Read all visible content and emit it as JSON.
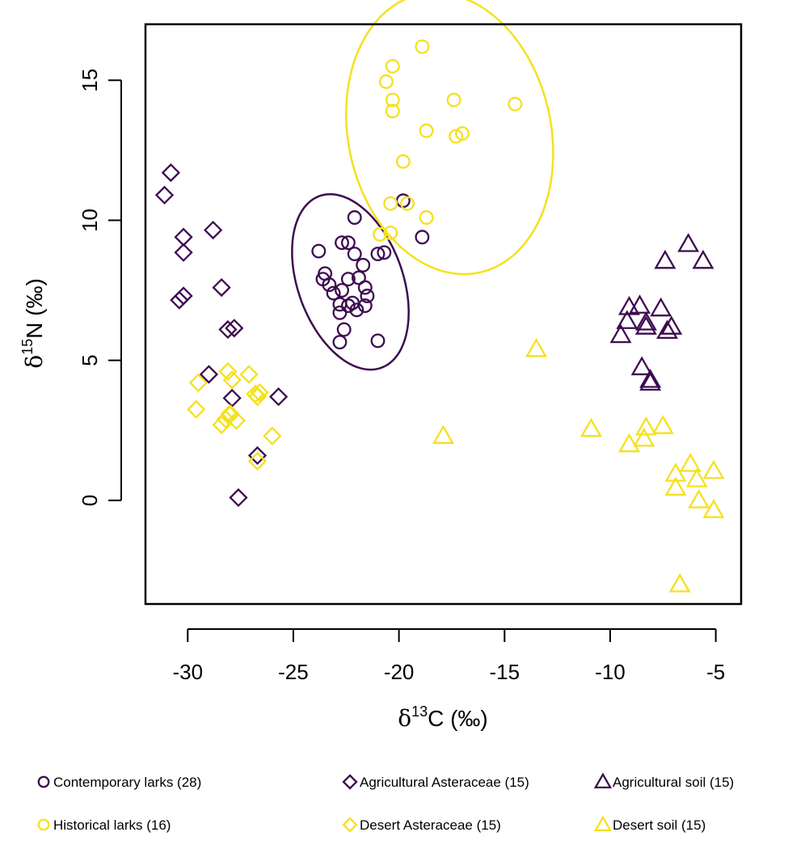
{
  "colors": {
    "purple": "#3d0c4f",
    "yellow": "#f5e11d",
    "axis": "#000000"
  },
  "chart_data": {
    "type": "scatter",
    "title": "",
    "xlabel": {
      "prefix": "δ",
      "sup": "13",
      "main": "C (‰)"
    },
    "ylabel": {
      "prefix": "δ",
      "sup": "15",
      "main": "N (‰)"
    },
    "xlim": [
      -32,
      -3.8
    ],
    "ylim": [
      -3.7,
      17
    ],
    "xticks": [
      -30,
      -25,
      -20,
      -15,
      -10,
      -5
    ],
    "xtick_labels": [
      "-30",
      "-25",
      "-20",
      "-15",
      "-10",
      "-5"
    ],
    "yticks": [
      0,
      5,
      10,
      15
    ],
    "ytick_labels": [
      "0",
      "5",
      "10",
      "15"
    ],
    "grid": false,
    "legend_position": "bottom",
    "series": [
      {
        "name": "Contemporary larks (28)",
        "marker": "circle",
        "color": "#3d0c4f",
        "points": [
          [
            -23.8,
            8.9
          ],
          [
            -22.7,
            9.2
          ],
          [
            -22.4,
            9.2
          ],
          [
            -22.1,
            10.1
          ],
          [
            -19.8,
            10.7
          ],
          [
            -18.9,
            9.4
          ],
          [
            -21.0,
            8.8
          ],
          [
            -20.7,
            8.85
          ],
          [
            -21.7,
            8.4
          ],
          [
            -22.1,
            8.8
          ],
          [
            -23.5,
            8.1
          ],
          [
            -23.6,
            7.9
          ],
          [
            -23.3,
            7.7
          ],
          [
            -23.1,
            7.4
          ],
          [
            -22.4,
            7.9
          ],
          [
            -21.9,
            7.95
          ],
          [
            -21.6,
            7.6
          ],
          [
            -21.5,
            7.3
          ],
          [
            -22.7,
            7.5
          ],
          [
            -22.2,
            7.05
          ],
          [
            -22.4,
            6.95
          ],
          [
            -21.6,
            6.95
          ],
          [
            -22.8,
            6.7
          ],
          [
            -22.8,
            7.0
          ],
          [
            -22.6,
            6.1
          ],
          [
            -22.8,
            5.65
          ],
          [
            -21.0,
            5.7
          ],
          [
            -22.0,
            6.8
          ]
        ]
      },
      {
        "name": "Historical larks (16)",
        "marker": "circle",
        "color": "#f5e11d",
        "points": [
          [
            -18.9,
            16.2
          ],
          [
            -20.3,
            15.5
          ],
          [
            -20.6,
            14.95
          ],
          [
            -20.3,
            14.3
          ],
          [
            -20.3,
            13.9
          ],
          [
            -17.4,
            14.3
          ],
          [
            -14.5,
            14.15
          ],
          [
            -18.7,
            13.2
          ],
          [
            -17.3,
            13.0
          ],
          [
            -17.0,
            13.1
          ],
          [
            -19.8,
            12.1
          ],
          [
            -20.4,
            10.6
          ],
          [
            -19.6,
            10.6
          ],
          [
            -18.7,
            10.1
          ],
          [
            -20.9,
            9.5
          ],
          [
            -20.4,
            9.55
          ]
        ]
      },
      {
        "name": "Agricultural Asteraceae (15)",
        "marker": "diamond",
        "color": "#3d0c4f",
        "points": [
          [
            -30.8,
            11.7
          ],
          [
            -31.1,
            10.9
          ],
          [
            -30.2,
            9.4
          ],
          [
            -30.2,
            8.85
          ],
          [
            -28.8,
            9.65
          ],
          [
            -28.4,
            7.6
          ],
          [
            -30.2,
            7.3
          ],
          [
            -30.4,
            7.15
          ],
          [
            -28.1,
            6.1
          ],
          [
            -27.8,
            6.15
          ],
          [
            -29.0,
            4.5
          ],
          [
            -27.9,
            3.65
          ],
          [
            -25.7,
            3.7
          ],
          [
            -26.7,
            1.6
          ],
          [
            -27.6,
            0.1
          ]
        ]
      },
      {
        "name": "Desert Asteraceae (15)",
        "marker": "diamond",
        "color": "#f5e11d",
        "points": [
          [
            -28.1,
            4.6
          ],
          [
            -29.5,
            4.2
          ],
          [
            -27.9,
            4.3
          ],
          [
            -27.1,
            4.5
          ],
          [
            -26.8,
            3.8
          ],
          [
            -26.6,
            3.85
          ],
          [
            -26.7,
            3.7
          ],
          [
            -29.6,
            3.25
          ],
          [
            -28.0,
            3.05
          ],
          [
            -28.2,
            2.9
          ],
          [
            -27.7,
            2.85
          ],
          [
            -28.4,
            2.7
          ],
          [
            -26.0,
            2.3
          ],
          [
            -26.7,
            1.4
          ],
          [
            -28.0,
            3.1
          ]
        ]
      },
      {
        "name": "Agricultural soil (15)",
        "marker": "triangle",
        "color": "#3d0c4f",
        "points": [
          [
            -6.3,
            9.15
          ],
          [
            -7.4,
            8.55
          ],
          [
            -5.6,
            8.55
          ],
          [
            -9.1,
            6.9
          ],
          [
            -8.6,
            6.95
          ],
          [
            -7.6,
            6.85
          ],
          [
            -9.2,
            6.4
          ],
          [
            -8.3,
            6.35
          ],
          [
            -8.3,
            6.2
          ],
          [
            -7.1,
            6.2
          ],
          [
            -7.3,
            6.05
          ],
          [
            -9.5,
            5.9
          ],
          [
            -8.5,
            4.75
          ],
          [
            -8.1,
            4.3
          ],
          [
            -8.1,
            4.2
          ]
        ]
      },
      {
        "name": "Desert soil (15)",
        "marker": "triangle",
        "color": "#f5e11d",
        "points": [
          [
            -13.5,
            5.4
          ],
          [
            -17.9,
            2.3
          ],
          [
            -10.9,
            2.55
          ],
          [
            -8.3,
            2.6
          ],
          [
            -7.5,
            2.65
          ],
          [
            -8.4,
            2.2
          ],
          [
            -9.1,
            2.0
          ],
          [
            -6.2,
            1.3
          ],
          [
            -5.1,
            1.05
          ],
          [
            -6.9,
            0.95
          ],
          [
            -5.9,
            0.75
          ],
          [
            -6.9,
            0.45
          ],
          [
            -5.8,
            0.0
          ],
          [
            -5.1,
            -0.35
          ],
          [
            -6.7,
            -3.0
          ]
        ]
      }
    ],
    "ellipses": [
      {
        "series": "Contemporary larks (28)",
        "color": "#3d0c4f",
        "center": [
          -22.3,
          7.8
        ],
        "rx": 2.35,
        "ry": 3.45,
        "angle_deg": 35
      },
      {
        "series": "Historical larks (16)",
        "color": "#f5e11d",
        "center": [
          -17.6,
          13.1
        ],
        "rx": 4.6,
        "ry": 5.3,
        "angle_deg": 40
      }
    ]
  }
}
